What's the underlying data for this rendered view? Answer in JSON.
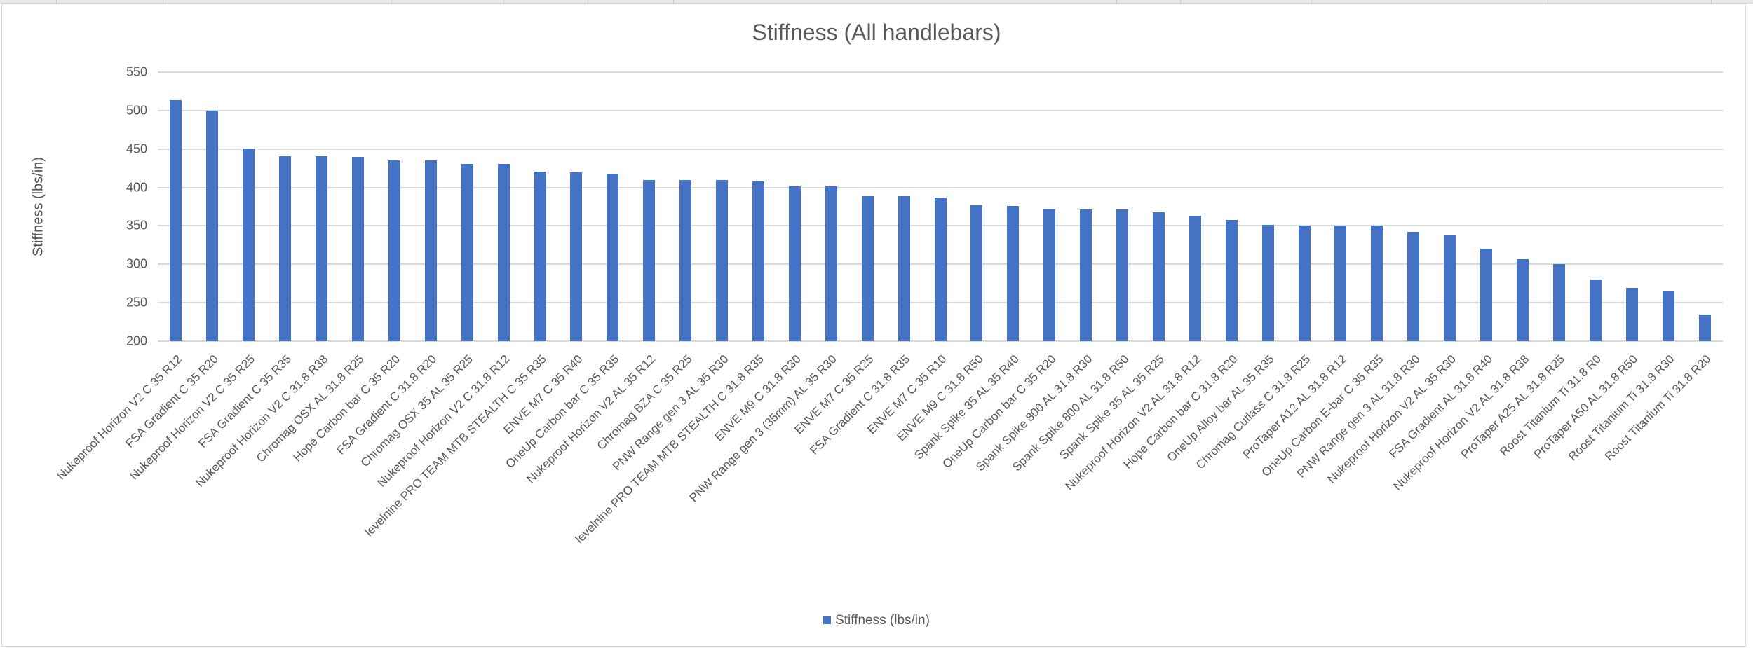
{
  "chart_data": {
    "type": "bar",
    "title": "Stiffness (All handlebars)",
    "xlabel": "",
    "ylabel": "Stiffness (lbs/in)",
    "ylim": [
      200,
      550
    ],
    "yticks": [
      200,
      250,
      300,
      350,
      400,
      450,
      500,
      550
    ],
    "grid": true,
    "legend_position": "bottom",
    "series": [
      {
        "name": "Stiffness (lbs/in)",
        "color": "#4472c4"
      }
    ],
    "categories": [
      "Nukeproof Horizon V2 C 35 R12",
      "FSA Gradient C 35 R20",
      "Nukeproof Horizon V2 C 35 R25",
      "FSA Gradient C 35 R35",
      "Nukeproof Horizon V2 C 31.8 R38",
      "Chromag OSX AL 31.8 R25",
      "Hope Carbon bar C 35 R20",
      "FSA Gradient C 31.8 R20",
      "Chromag OSX 35 AL 35 R25",
      "Nukeproof Horizon V2 C 31.8 R12",
      "levelnine PRO TEAM MTB STEALTH C 35 R35",
      "ENVE M7 C 35 R40",
      "OneUp Carbon bar C 35 R35",
      "Nukeproof Horizon V2 AL 35 R12",
      "Chromag BZA C 35 R25",
      "PNW Range gen 3 AL 35 R30",
      "levelnine PRO TEAM MTB STEALTH C 31.8 R35",
      "ENVE M9 C 31.8 R30",
      "PNW Range gen 3 (35mm) AL 35 R30",
      "ENVE M7 C 35 R25",
      "FSA Gradient C 31.8 R35",
      "ENVE M7 C 35 R10",
      "ENVE M9 C 31.8 R50",
      "Spank Spike 35 AL 35 R40",
      "OneUp Carbon bar C 35 R20",
      "Spank Spike 800 AL 31.8 R30",
      "Spank Spike 800 AL 31.8 R50",
      "Spank Spike 35 AL 35 R25",
      "Nukeproof Horizon V2 AL 31.8 R12",
      "Hope Carbon bar C 31.8 R20",
      "OneUp Alloy bar AL 35 R35",
      "Chromag Cutlass C 31.8 R25",
      "ProTaper A12 AL 31.8 R12",
      "OneUp Carbon E-bar C 35 R35",
      "PNW Range gen 3 AL 31.8 R30",
      "Nukeproof Horizon V2 AL 35 R30",
      "FSA Gradient AL 31.8 R40",
      "Nukeproof Horizon V2 AL 31.8 R38",
      "ProTaper A25 AL 31.8 R25",
      "Roost Titanium Ti 31.8 R0",
      "ProTaper A50 AL 31.8 R50",
      "Roost Titanium Ti 31.8 R30",
      "Roost Titanium Ti 31.8 R20"
    ],
    "values": [
      514,
      500,
      451,
      441,
      441,
      440,
      435,
      435,
      431,
      431,
      421,
      420,
      418,
      410,
      410,
      410,
      408,
      401,
      401,
      389,
      389,
      387,
      377,
      376,
      372,
      371,
      371,
      368,
      363,
      358,
      351,
      350,
      350,
      350,
      342,
      338,
      320,
      307,
      300,
      280,
      269,
      265,
      235
    ]
  },
  "legend": {
    "label": "Stiffness (lbs/in)"
  }
}
